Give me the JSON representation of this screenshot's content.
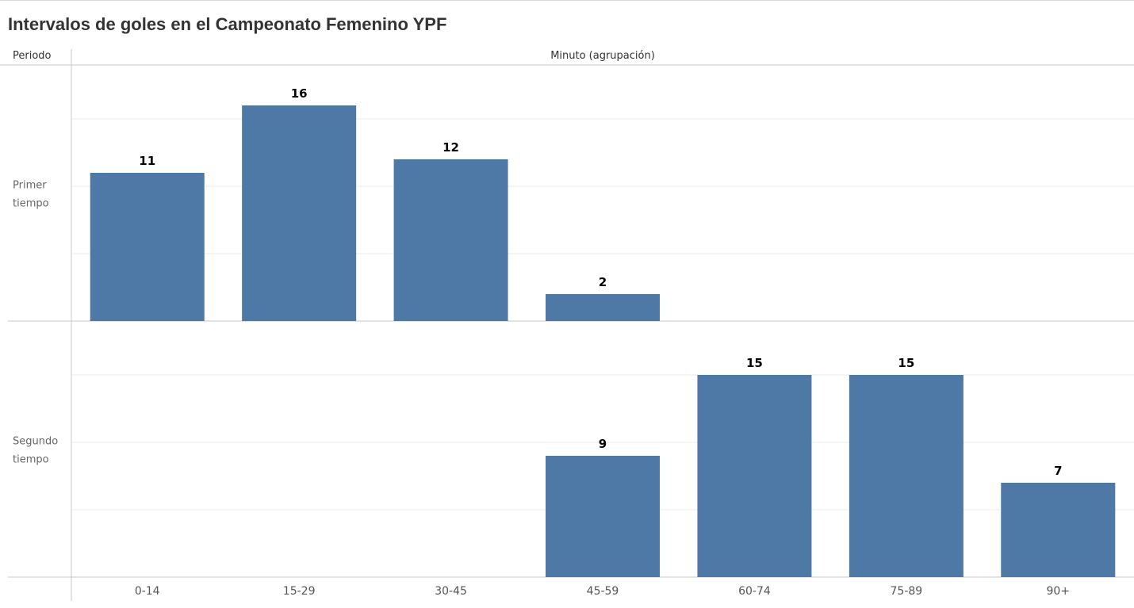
{
  "chart_data": {
    "type": "bar",
    "title": "Intervalos de goles en el Campeonato Femenino YPF",
    "row_header": "Periodo",
    "column_header": "Minuto (agrupación)",
    "categories": [
      "0-14",
      "15-29",
      "30-45",
      "45-59",
      "60-74",
      "75-89",
      "90+"
    ],
    "series": [
      {
        "name": "Primer tiempo",
        "values": [
          11,
          16,
          12,
          2,
          null,
          null,
          null
        ]
      },
      {
        "name": "Segundo tiempo",
        "values": [
          null,
          null,
          null,
          9,
          15,
          15,
          7
        ]
      }
    ],
    "ylim": [
      0,
      19
    ],
    "bar_color": "#4e79a7",
    "grid": true
  }
}
